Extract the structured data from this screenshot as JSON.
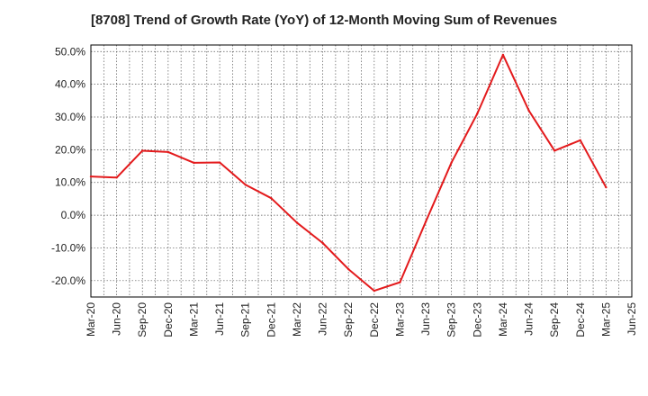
{
  "chart_data": {
    "type": "line",
    "title": "[8708]  Trend of Growth Rate (YoY) of 12-Month Moving Sum of Revenues",
    "xlabel": "",
    "ylabel": "",
    "categories": [
      "Mar-20",
      "Jun-20",
      "Sep-20",
      "Dec-20",
      "Mar-21",
      "Jun-21",
      "Sep-21",
      "Dec-21",
      "Mar-22",
      "Jun-22",
      "Sep-22",
      "Dec-22",
      "Mar-23",
      "Jun-23",
      "Sep-23",
      "Dec-23",
      "Mar-24",
      "Jun-24",
      "Sep-24",
      "Dec-24",
      "Mar-25",
      "Jun-25"
    ],
    "series": [
      {
        "values": [
          11.8,
          11.5,
          19.7,
          19.3,
          16.0,
          16.1,
          9.3,
          5.2,
          -2.3,
          -8.5,
          -16.5,
          -23.1,
          -20.5,
          -2.0,
          16.1,
          31.0,
          49.0,
          32.0,
          19.7,
          22.9,
          8.5,
          null
        ]
      }
    ],
    "ylim": [
      -25,
      52
    ],
    "yticks": [
      -20,
      -10,
      0,
      10,
      20,
      30,
      40,
      50
    ],
    "ytick_labels": [
      "-20.0%",
      "-10.0%",
      "0.0%",
      "10.0%",
      "20.0%",
      "30.0%",
      "40.0%",
      "50.0%"
    ],
    "grid": true,
    "legend": "none",
    "colors": {
      "line": "#e31a1c",
      "grid": "#555555",
      "axis": "#000000"
    }
  }
}
